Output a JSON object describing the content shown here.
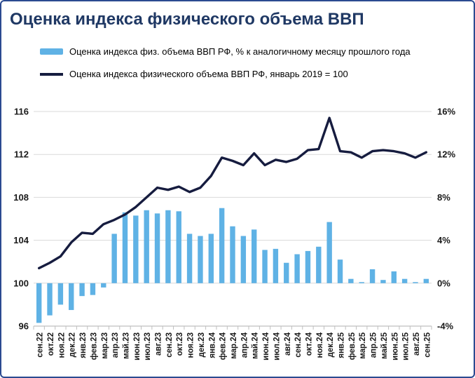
{
  "title": "Оценка индекса физического объема ВВП",
  "legend": {
    "bars_label": "Оценка индекса физ. объема ВВП РФ, % к аналогичному месяцу прошлого года",
    "line_label": "Оценка индекса физического объема ВВП РФ, январь 2019 = 100"
  },
  "chart_data": {
    "type": "bar",
    "subtype": "combo bar+line, dual axis",
    "title": "Оценка индекса физического объема ВВП",
    "grid": true,
    "legend_position": "top-left",
    "categories": [
      "сен.22",
      "окт.22",
      "ноя.22",
      "дек.22",
      "янв.23",
      "фев.23",
      "мар.23",
      "апр.23",
      "май.23",
      "июн.23",
      "июл.23",
      "авг.23",
      "сен.23",
      "окт.23",
      "ноя.23",
      "дек.23",
      "янв.24",
      "фев.24",
      "мар.24",
      "апр.24",
      "май.24",
      "июн.24",
      "июл.24",
      "авг.24",
      "сен.24",
      "окт.24",
      "ноя.24",
      "дек.24",
      "янв.25",
      "фев.25",
      "мар.25",
      "апр.25",
      "май.25",
      "июн.25",
      "июл.25",
      "авг.25",
      "сен.25"
    ],
    "series": [
      {
        "name": "Оценка индекса физ. объема ВВП РФ, % к аналогичному месяцу прошлого года",
        "type": "bar",
        "axis": "right",
        "unit": "%",
        "values": [
          -3.7,
          -3.0,
          -2.0,
          -2.5,
          -1.2,
          -1.1,
          -0.4,
          4.6,
          6.6,
          6.3,
          6.8,
          6.5,
          6.8,
          6.7,
          4.6,
          4.4,
          4.6,
          7.0,
          5.3,
          4.4,
          5.0,
          3.1,
          3.2,
          1.9,
          2.7,
          3.0,
          3.4,
          5.7,
          2.2,
          0.4,
          0.1,
          1.3,
          0.3,
          1.1,
          0.4,
          0.1,
          0.4
        ]
      },
      {
        "name": "Оценка индекса физического объема ВВП РФ, январь 2019 = 100",
        "type": "line",
        "axis": "left",
        "values": [
          101.4,
          101.9,
          102.5,
          103.8,
          104.7,
          104.6,
          105.5,
          105.9,
          106.4,
          107.1,
          108.0,
          108.9,
          108.7,
          109.0,
          108.5,
          108.9,
          110.0,
          111.7,
          111.4,
          111.0,
          112.1,
          111.0,
          111.5,
          111.3,
          111.6,
          112.4,
          112.5,
          115.4,
          112.3,
          112.2,
          111.7,
          112.3,
          112.4,
          112.3,
          112.1,
          111.7,
          112.2
        ]
      }
    ],
    "left_axis": {
      "min": 96,
      "max": 116,
      "ticks": [
        96,
        100,
        104,
        108,
        112,
        116
      ]
    },
    "right_axis": {
      "ticks": [
        "-4%",
        "0%",
        "4%",
        "8%",
        "12%",
        "16%"
      ],
      "note": "0% aligns with index 100"
    },
    "colors": {
      "bar": "#5FB2E5",
      "line": "#161C3F",
      "grid": "#D9D9D9",
      "axis": "#BFBFBF",
      "title": "#1F3864",
      "frame_border": "#2B4A91"
    }
  }
}
